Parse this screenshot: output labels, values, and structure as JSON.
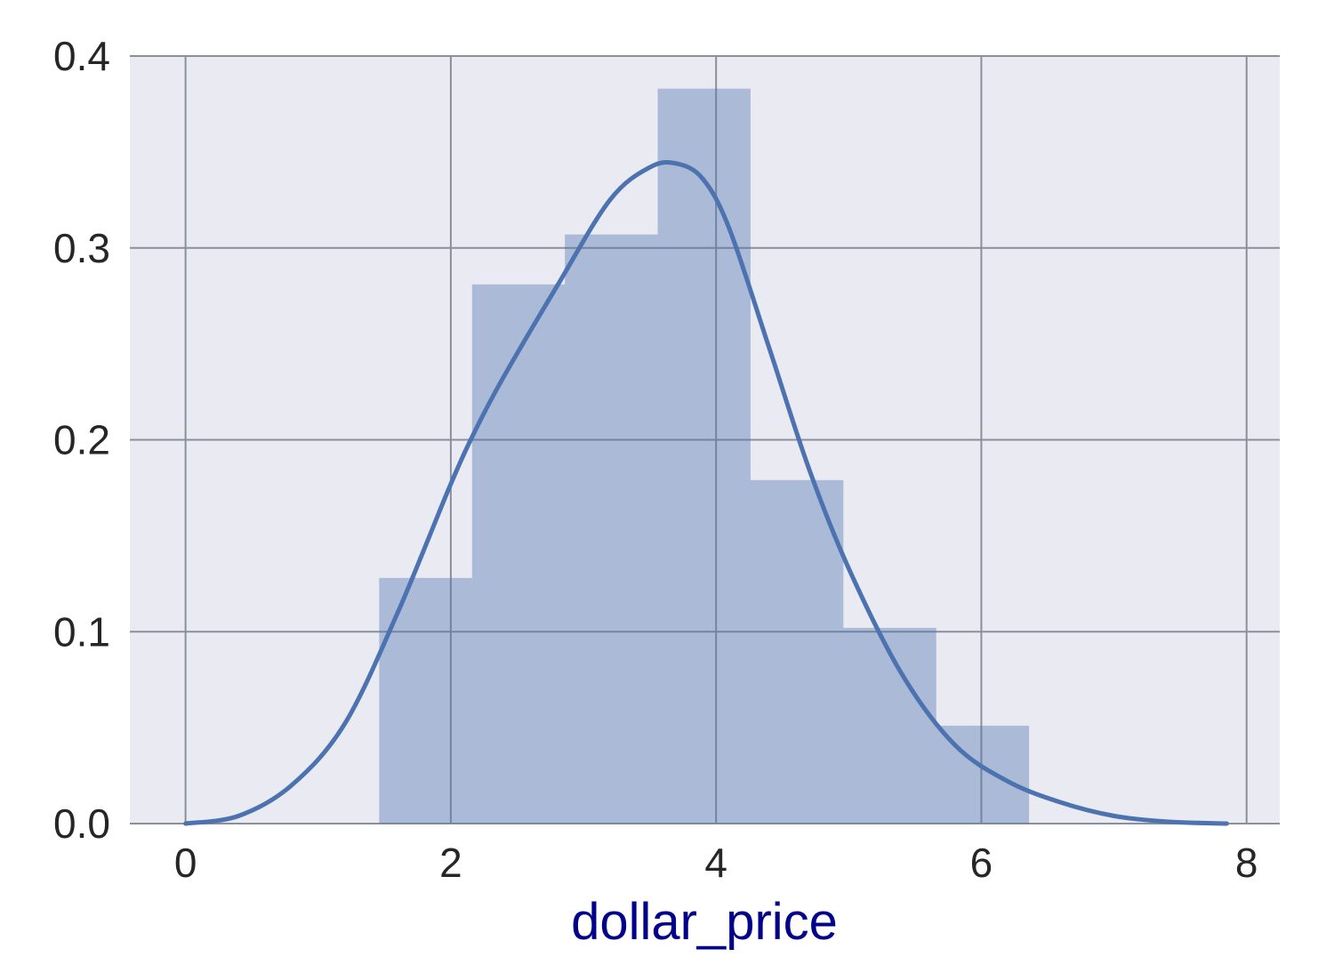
{
  "chart_data": {
    "type": "bar",
    "title": "",
    "xlabel": "dollar_price",
    "ylabel": "",
    "xlim": [
      -0.42,
      8.25
    ],
    "ylim": [
      0.0,
      0.4
    ],
    "xticks": [
      0,
      2,
      4,
      6,
      8
    ],
    "yticks": [
      0.0,
      0.1,
      0.2,
      0.3,
      0.4
    ],
    "xtick_labels": [
      "0",
      "2",
      "4",
      "6",
      "8"
    ],
    "ytick_labels": [
      "0.0",
      "0.1",
      "0.2",
      "0.3",
      "0.4"
    ],
    "grid": true,
    "histogram": {
      "bin_edges": [
        1.46,
        2.16,
        2.86,
        3.56,
        4.26,
        4.96,
        5.66,
        6.36
      ],
      "density": [
        0.128,
        0.281,
        0.307,
        0.383,
        0.179,
        0.102,
        0.051
      ]
    },
    "kde": {
      "x": [
        0.0,
        0.4,
        0.8,
        1.2,
        1.6,
        2.0,
        2.2,
        2.4,
        2.8,
        3.2,
        3.5,
        3.7,
        3.9,
        4.1,
        4.4,
        4.7,
        5.0,
        5.4,
        5.8,
        6.2,
        6.6,
        7.0,
        7.4,
        7.85
      ],
      "y": [
        0.0,
        0.004,
        0.02,
        0.052,
        0.11,
        0.177,
        0.207,
        0.233,
        0.28,
        0.325,
        0.342,
        0.344,
        0.336,
        0.31,
        0.248,
        0.185,
        0.133,
        0.078,
        0.041,
        0.022,
        0.011,
        0.004,
        0.001,
        0.0
      ]
    },
    "colors": {
      "bar_fill": "#4c72b0",
      "bar_opacity": 0.4,
      "kde_line": "#4c72b0",
      "plot_background": "#eaeaf2",
      "grid": "#8a8f9c",
      "xlabel_color": "#00008b"
    }
  }
}
